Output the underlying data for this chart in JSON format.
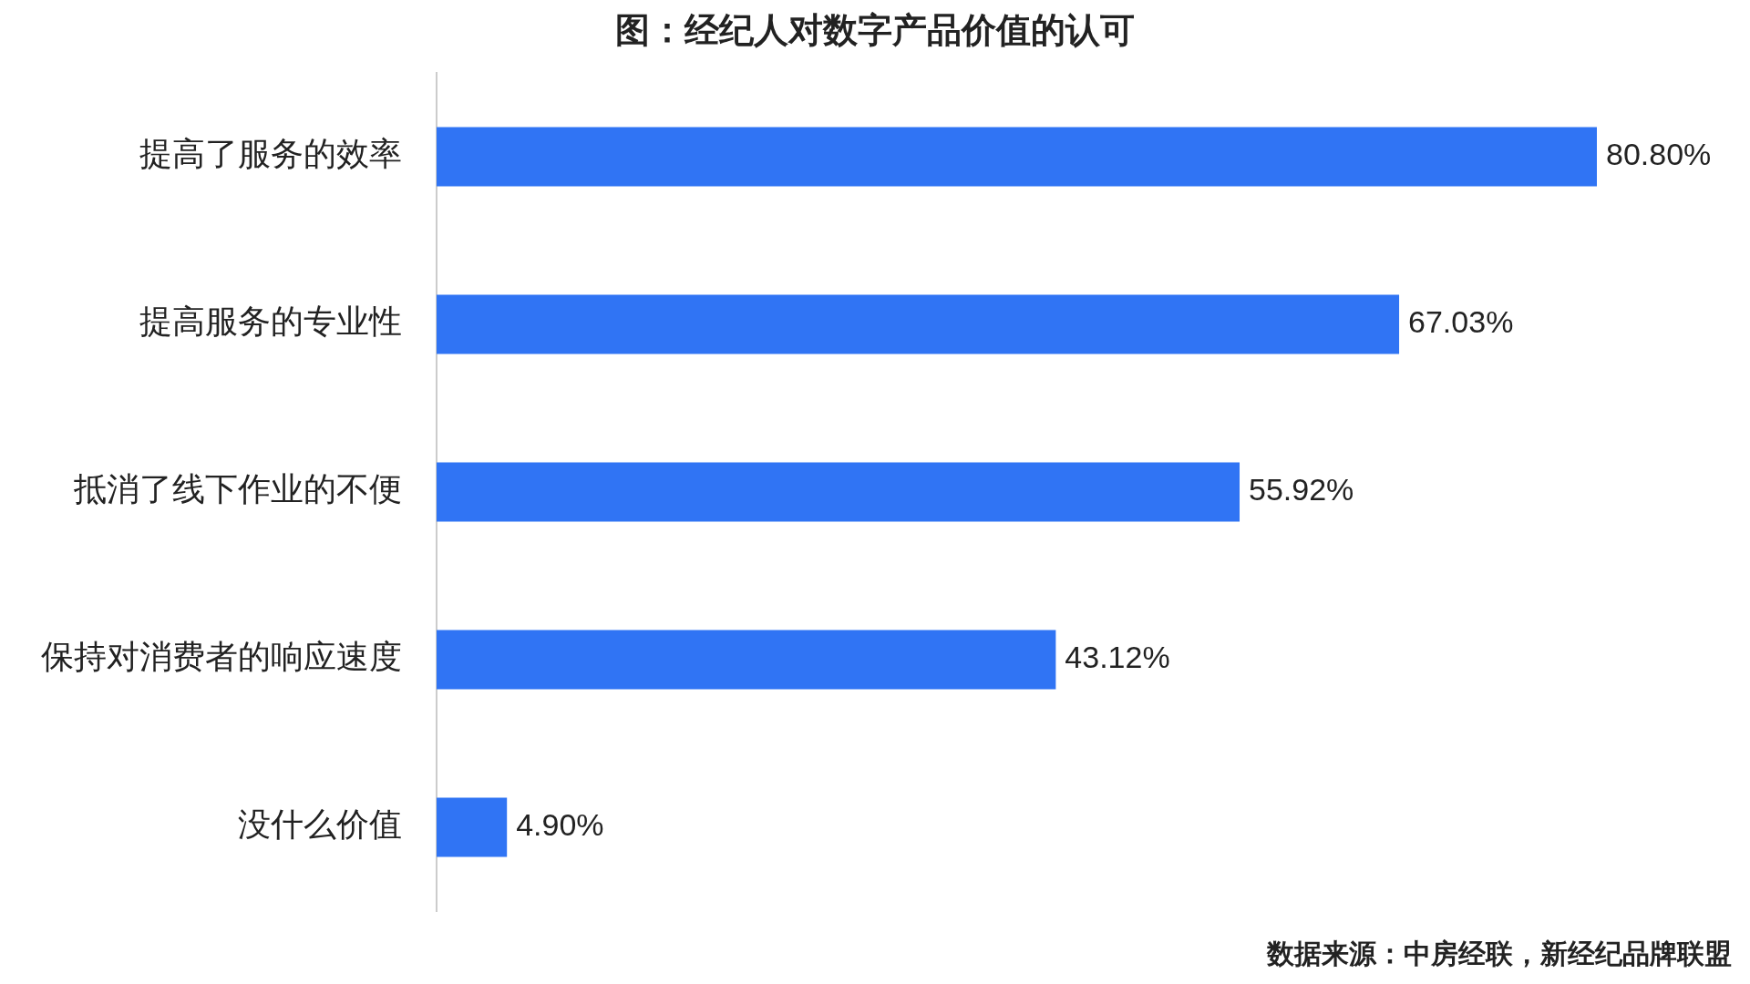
{
  "chart_data": {
    "type": "bar",
    "orientation": "horizontal",
    "title": "图：经纪人对数字产品价值的认可",
    "categories": [
      "提高了服务的效率",
      "提高服务的专业性",
      "抵消了线下作业的不便",
      "保持对消费者的响应速度",
      "没什么价值"
    ],
    "values": [
      80.8,
      67.03,
      55.92,
      43.12,
      4.9
    ],
    "value_labels": [
      "80.80%",
      "67.03%",
      "55.92%",
      "43.12%",
      "4.90%"
    ],
    "color": "#3074f4",
    "annotations": [
      "数据来源：中房经联，新经纪品牌联盟"
    ]
  }
}
